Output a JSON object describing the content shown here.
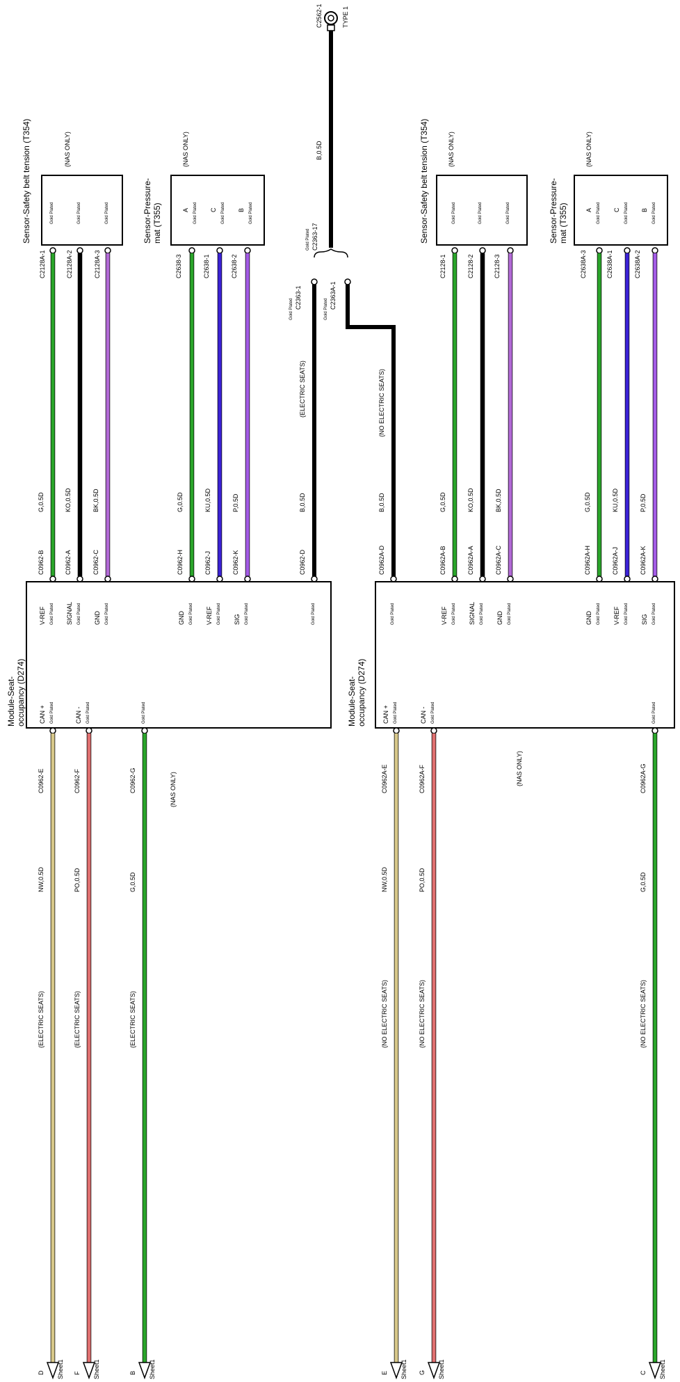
{
  "colors": {
    "G": "#2aa52a",
    "K": "#f47a7a",
    "BK": "#b26ad6",
    "KU": "#3b22d6",
    "P": "#a35be6",
    "B": "#000000",
    "NW": "#d8c88a",
    "PO": "#e07070"
  },
  "common": {
    "gold": "Gold Plated",
    "nas_only": "(NAS ONLY)",
    "electric": "(ELECTRIC SEATS)",
    "no_electric": "(NO ELECTRIC SEATS)",
    "sheet": "Sheet1"
  },
  "top_ground": {
    "connector": "C2562-1",
    "type": "TYPE 1",
    "wire": "B,0.5D",
    "splice": "C2363-17",
    "left_pin": "C2363-1",
    "right_pin": "C2363A-1"
  },
  "left": {
    "belt_sensor": {
      "title": "Sensor-Safety belt tension (T354)",
      "pins": [
        "C2128A-1",
        "C2128A-2",
        "C2128A-3"
      ]
    },
    "pressure_sensor": {
      "title1": "Sensor-Pressure-",
      "title2": "mat (T355)",
      "pins": [
        "C2638-3",
        "C2638-1",
        "C2638-2"
      ],
      "letters": [
        "A",
        "C",
        "B"
      ]
    },
    "module": {
      "title1": "Module-Seat-",
      "title2": "occupancy (D274)"
    },
    "upper_wires": [
      {
        "wire": "G,0.5D",
        "conn": "C0962-B",
        "sig": "V-REF"
      },
      {
        "wire": "KO,0.5D",
        "conn": "C0962-A",
        "sig": "SIGNAL"
      },
      {
        "wire": "BK,0.5D",
        "conn": "C0962-C",
        "sig": "GND"
      },
      {
        "wire": "G,0.5D",
        "conn": "C0962-H",
        "sig": "GND"
      },
      {
        "wire": "KU,0.5D",
        "conn": "C0962-J",
        "sig": "V-REF"
      },
      {
        "wire": "P,0.5D",
        "conn": "C0962-K",
        "sig": "SIG"
      },
      {
        "wire": "B,0.5D",
        "conn": "C0962-D",
        "sig": ""
      }
    ],
    "lower_wires": [
      {
        "conn": "C0962-E",
        "wire": "NW,0.5D",
        "sig": "CAN +",
        "letter": "D"
      },
      {
        "conn": "C0962-F",
        "wire": "PO,0.5D",
        "sig": "CAN -",
        "letter": "F"
      },
      {
        "conn": "C0962-G",
        "wire": "G,0.5D",
        "sig": "",
        "letter": "B"
      }
    ]
  },
  "right": {
    "belt_sensor": {
      "title": "Sensor-Safety belt tension (T354)",
      "pins": [
        "C2128-1",
        "C2128-2",
        "C2128-3"
      ]
    },
    "pressure_sensor": {
      "title1": "Sensor-Pressure-",
      "title2": "mat (T355)",
      "pins": [
        "C2638A-3",
        "C2638A-1",
        "C2638A-2"
      ],
      "letters": [
        "A",
        "C",
        "B"
      ]
    },
    "module": {
      "title1": "Module-Seat-",
      "title2": "occupancy (D274)"
    },
    "upper_wires": [
      {
        "wire": "B,0.5D",
        "conn": "C0962A-D",
        "sig": ""
      },
      {
        "wire": "G,0.5D",
        "conn": "C0962A-B",
        "sig": "V-REF"
      },
      {
        "wire": "KO,0.5D",
        "conn": "C0962A-A",
        "sig": "SIGNAL"
      },
      {
        "wire": "BK,0.5D",
        "conn": "C0962A-C",
        "sig": "GND"
      },
      {
        "wire": "G,0.5D",
        "conn": "C0962A-H",
        "sig": "GND"
      },
      {
        "wire": "KU,0.5D",
        "conn": "C0962A-J",
        "sig": "V-REF"
      },
      {
        "wire": "P,0.5D",
        "conn": "C0962A-K",
        "sig": "SIG"
      }
    ],
    "lower_wires": [
      {
        "conn": "C0962A-E",
        "wire": "NW,0.5D",
        "sig": "CAN +",
        "letter": "E"
      },
      {
        "conn": "C0962A-F",
        "wire": "PO,0.5D",
        "sig": "CAN -",
        "letter": "G"
      },
      {
        "conn": "C0962A-G",
        "wire": "G,0.5D",
        "sig": "",
        "letter": "C"
      }
    ]
  }
}
